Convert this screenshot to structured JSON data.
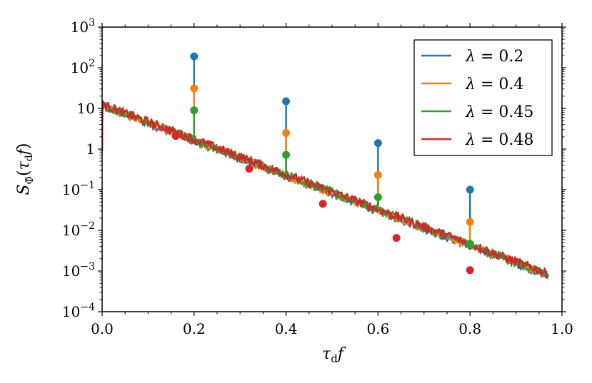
{
  "chart_data": {
    "type": "line",
    "title": "",
    "xlabel": "τd f",
    "ylabel": "SΦ̃(τd f)",
    "xlim": [
      0.0,
      1.0
    ],
    "ylim": [
      0.0001,
      1000
    ],
    "yscale": "log",
    "grid": false,
    "legend_position": "top-right",
    "x_ticks": [
      {
        "value": 0.0,
        "label": "0.0"
      },
      {
        "value": 0.2,
        "label": "0.2"
      },
      {
        "value": 0.4,
        "label": "0.4"
      },
      {
        "value": 0.6,
        "label": "0.6"
      },
      {
        "value": 0.8,
        "label": "0.8"
      },
      {
        "value": 1.0,
        "label": "1.0"
      }
    ],
    "y_ticks": [
      {
        "value": 0.0001,
        "base": "10",
        "exp": "−4"
      },
      {
        "value": 0.001,
        "base": "10",
        "exp": "−3"
      },
      {
        "value": 0.01,
        "base": "10",
        "exp": "−2"
      },
      {
        "value": 0.1,
        "base": "10",
        "exp": "−1"
      },
      {
        "value": 1,
        "base": "1",
        "exp": ""
      },
      {
        "value": 10,
        "base": "10",
        "exp": ""
      },
      {
        "value": 100,
        "base": "10",
        "exp": "2"
      },
      {
        "value": 1000,
        "base": "10",
        "exp": "3"
      }
    ],
    "background_spectrum": {
      "start_value": 12,
      "decay_per_unit_x": 4.3,
      "x_end": 0.95
    },
    "series": [
      {
        "name": "λ = 0.2",
        "lambda": "0.2",
        "color": "#1f77b4",
        "peaks": [
          {
            "x": 0.2,
            "y": 190
          },
          {
            "x": 0.4,
            "y": 15
          },
          {
            "x": 0.6,
            "y": 1.4
          },
          {
            "x": 0.8,
            "y": 0.1
          }
        ]
      },
      {
        "name": "λ = 0.4",
        "lambda": "0.4",
        "color": "#ff7f0e",
        "peaks": [
          {
            "x": 0.2,
            "y": 31
          },
          {
            "x": 0.4,
            "y": 2.5
          },
          {
            "x": 0.6,
            "y": 0.23
          },
          {
            "x": 0.8,
            "y": 0.016
          }
        ]
      },
      {
        "name": "λ = 0.45",
        "lambda": "0.45",
        "color": "#2ca02c",
        "peaks": [
          {
            "x": 0.2,
            "y": 9
          },
          {
            "x": 0.4,
            "y": 0.72
          },
          {
            "x": 0.6,
            "y": 0.065
          },
          {
            "x": 0.8,
            "y": 0.0047
          }
        ]
      },
      {
        "name": "λ = 0.48",
        "lambda": "0.48",
        "color": "#d62728",
        "peaks": [
          {
            "x": 0.16,
            "y": 2.1
          },
          {
            "x": 0.32,
            "y": 0.33
          },
          {
            "x": 0.48,
            "y": 0.045
          },
          {
            "x": 0.64,
            "y": 0.0065
          },
          {
            "x": 0.8,
            "y": 0.00105
          }
        ]
      }
    ]
  }
}
